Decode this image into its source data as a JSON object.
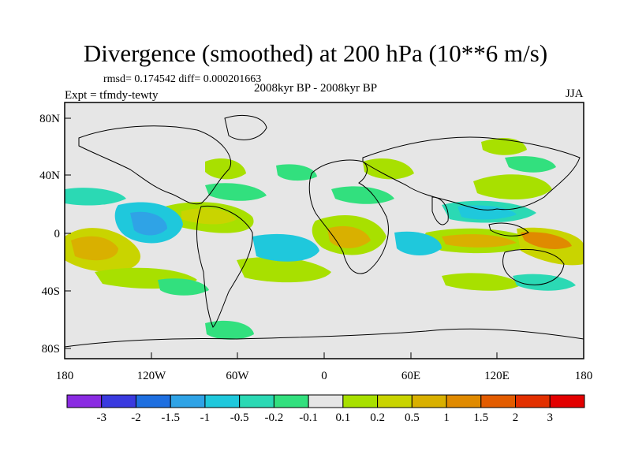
{
  "title": "Divergence (smoothed) at 200 hPa (10**6 m/s)",
  "stats": "rmsd= 0.174542 diff= 0.000201663",
  "subtitle": "2008kyr BP - 2008kyr BP",
  "experiment": "Expt = tfmdy-tewty",
  "season": "JJA",
  "axes": {
    "y_ticks": [
      "80N",
      "40N",
      "0",
      "40S",
      "80S"
    ],
    "x_ticks": [
      "180",
      "120W",
      "60W",
      "0",
      "60E",
      "120E",
      "180"
    ]
  },
  "colorbar": {
    "labels": [
      "-3",
      "-2",
      "-1.5",
      "-1",
      "-0.5",
      "-0.2",
      "-0.1",
      "0.1",
      "0.2",
      "0.5",
      "1",
      "1.5",
      "2",
      "3"
    ],
    "colors": [
      "#8a2be2",
      "#3a3adf",
      "#1e6fe0",
      "#2fa3e6",
      "#1fc8dc",
      "#2bd9b4",
      "#32e07e",
      "#e6e6e6",
      "#a8e000",
      "#c9d400",
      "#d9b000",
      "#e08a00",
      "#e35c00",
      "#e33000",
      "#e30000"
    ]
  },
  "colors": {
    "neutral": "#e6e6e6",
    "frame": "#000000"
  }
}
